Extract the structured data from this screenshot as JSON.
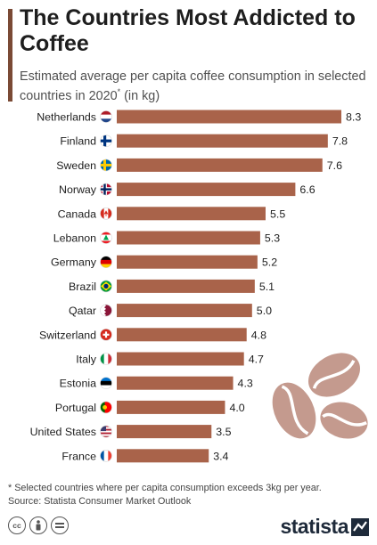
{
  "title": "The Countries Most Addicted to Coffee",
  "subtitle": "Estimated average per capita coffee consumption in selected countries in 2020",
  "subtitle_marker": "*",
  "subtitle_suffix": " (in kg)",
  "footnote": "* Selected countries where per capita consumption exceeds 3kg per year.",
  "source": "Source: Statista Consumer Market Outlook",
  "brand": "statista",
  "license_icons": [
    "cc-icon",
    "by-icon",
    "nd-icon"
  ],
  "colors": {
    "bar": "#A9634A",
    "accent": "#7A4A35",
    "text": "#2A2A2A",
    "bean": "#C49A8E"
  },
  "chart_data": {
    "type": "bar",
    "orientation": "horizontal",
    "title": "The Countries Most Addicted to Coffee",
    "categories": [
      "Netherlands",
      "Finland",
      "Sweden",
      "Norway",
      "Canada",
      "Lebanon",
      "Germany",
      "Brazil",
      "Qatar",
      "Switzerland",
      "Italy",
      "Estonia",
      "Portugal",
      "United States",
      "France"
    ],
    "values": [
      8.3,
      7.8,
      7.6,
      6.6,
      5.5,
      5.3,
      5.2,
      5.1,
      5.0,
      4.8,
      4.7,
      4.3,
      4.0,
      3.5,
      3.4
    ],
    "value_labels": [
      "8.3",
      "7.8",
      "7.6",
      "6.6",
      "5.5",
      "5.3",
      "5.2",
      "5.1",
      "5.0",
      "4.8",
      "4.7",
      "4.3",
      "4.0",
      "3.5",
      "3.4"
    ],
    "flags": [
      "netherlands-flag-icon",
      "finland-flag-icon",
      "sweden-flag-icon",
      "norway-flag-icon",
      "canada-flag-icon",
      "lebanon-flag-icon",
      "germany-flag-icon",
      "brazil-flag-icon",
      "qatar-flag-icon",
      "switzerland-flag-icon",
      "italy-flag-icon",
      "estonia-flag-icon",
      "portugal-flag-icon",
      "united-states-flag-icon",
      "france-flag-icon"
    ],
    "xlabel": "",
    "ylabel": "",
    "xlim": [
      0,
      8.3
    ],
    "grid": false,
    "legend": "none"
  }
}
